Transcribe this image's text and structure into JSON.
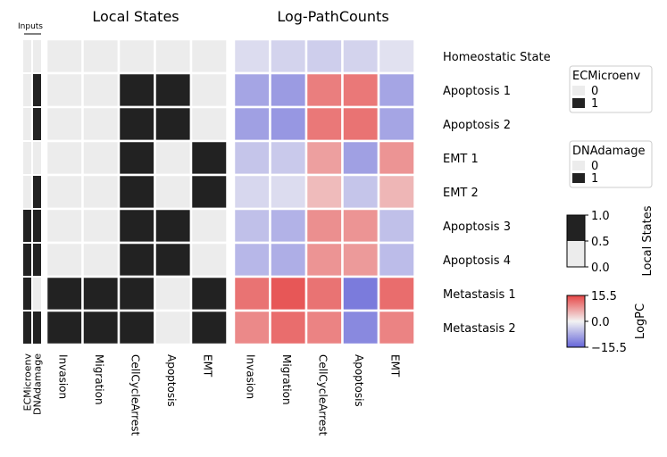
{
  "chart_data": {
    "type": "heatmap",
    "inputs_label": "Inputs",
    "left_title": "Local States",
    "right_title": "Log-PathCounts",
    "input_columns": [
      "ECMicroenv",
      "DNAdamage"
    ],
    "columns": [
      "Invasion",
      "Migration",
      "CellCycleArrest",
      "Apoptosis",
      "EMT"
    ],
    "rows": [
      "Homeostatic State",
      "Apoptosis 1",
      "Apoptosis 2",
      "EMT 1",
      "EMT 2",
      "Apoptosis 3",
      "Apoptosis 4",
      "Metastasis 1",
      "Metastasis 2"
    ],
    "inputs": [
      [
        0,
        0
      ],
      [
        0,
        1
      ],
      [
        0,
        1
      ],
      [
        0,
        0
      ],
      [
        0,
        1
      ],
      [
        1,
        1
      ],
      [
        1,
        1
      ],
      [
        1,
        0
      ],
      [
        1,
        1
      ]
    ],
    "local_states": [
      [
        0,
        0,
        0,
        0,
        0
      ],
      [
        0,
        0,
        1,
        1,
        0
      ],
      [
        0,
        0,
        1,
        1,
        0
      ],
      [
        0,
        0,
        1,
        0,
        1
      ],
      [
        0,
        0,
        1,
        0,
        1
      ],
      [
        0,
        0,
        1,
        1,
        0
      ],
      [
        0,
        0,
        1,
        1,
        0
      ],
      [
        1,
        1,
        1,
        0,
        1
      ],
      [
        1,
        1,
        1,
        0,
        1
      ]
    ],
    "log_pathcounts": [
      [
        -2.5,
        -3.5,
        -4,
        -3.5,
        -2
      ],
      [
        -8.5,
        -9.5,
        10.5,
        11,
        -8.5
      ],
      [
        -9,
        -10,
        11,
        11.5,
        -8.5
      ],
      [
        -5,
        -4.5,
        7.5,
        -9,
        8.5
      ],
      [
        -3,
        -2.5,
        5,
        -5,
        5.5
      ],
      [
        -5.5,
        -7,
        9,
        8.5,
        -5.5
      ],
      [
        -6.5,
        -7.5,
        8.5,
        8,
        -6
      ],
      [
        11.5,
        14,
        11.5,
        -13,
        12
      ],
      [
        9.5,
        12,
        10,
        -11.5,
        10
      ]
    ],
    "legends": [
      {
        "title": "ECMicroenv",
        "entries": [
          "0",
          "1"
        ]
      },
      {
        "title": "DNAdamage",
        "entries": [
          "0",
          "1"
        ]
      }
    ],
    "colorbar_states": {
      "label": "Local States",
      "ticks": [
        "1.0",
        "0.5",
        "0.0"
      ],
      "range": [
        0,
        1
      ]
    },
    "colorbar_pc": {
      "label": "LogPC",
      "ticks": [
        "15.5",
        "0.0",
        "−15.5"
      ],
      "range": [
        -15.5,
        15.5
      ]
    },
    "colors": {
      "off": "#ececec",
      "on": "#222222",
      "neg": "#6464d8",
      "mid": "#f3f3f3",
      "pos": "#e64646"
    }
  }
}
